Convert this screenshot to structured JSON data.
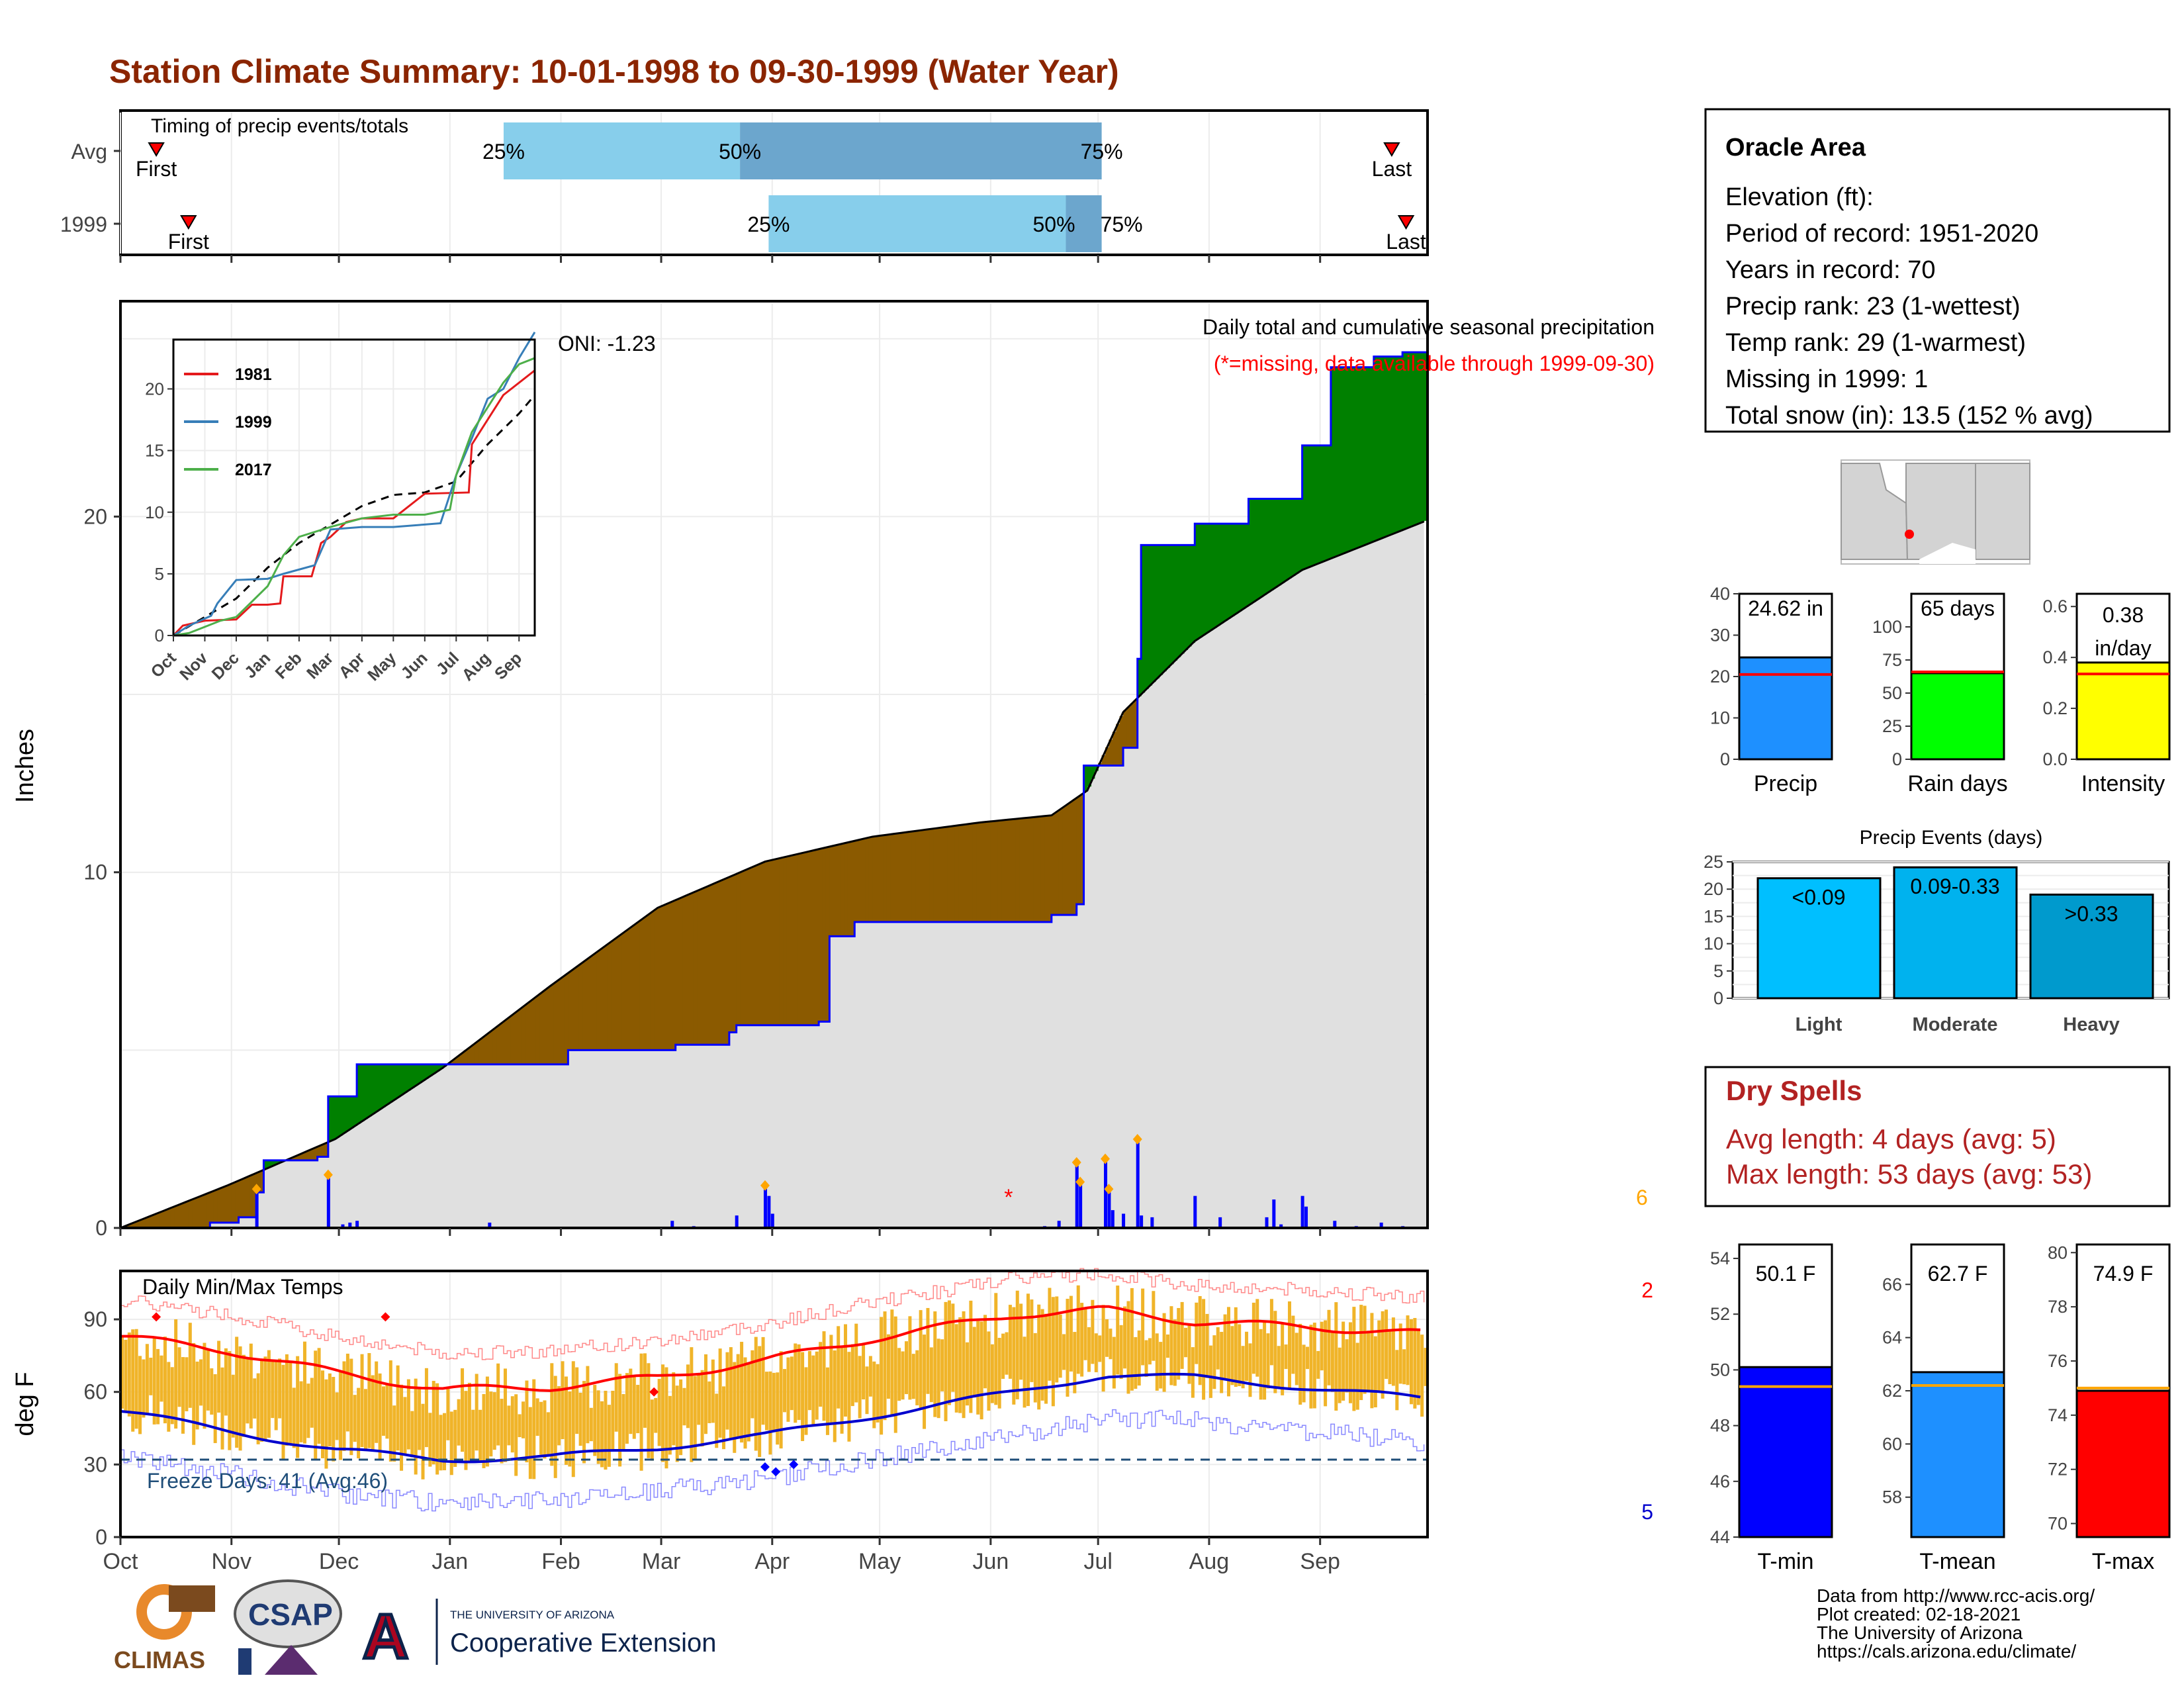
{
  "title": "Station Climate Summary: 10-01-1998 to 09-30-1999 (Water Year)",
  "colors": {
    "title": "#8B2500",
    "bar_light": "#87CEEB",
    "bar_mid": "#6CA6CD",
    "surplus": "#008000",
    "deficit": "#8B5A00",
    "avg_area": "#E0E0E0",
    "cum_line": "#0000FF",
    "daily_bar": "#0000FF",
    "marker": "#FFA500",
    "missing": "#FF0000",
    "temp_bar": "#F0B429",
    "tmax_line": "#FF0000",
    "tmin_line": "#0000CD",
    "freeze": "#1F4E79",
    "dry_text": "#B22222"
  },
  "timing": {
    "title": "Timing of precip events/totals",
    "rows": [
      {
        "label": "Avg",
        "q25": "25%",
        "q50": "50%",
        "q75": "75%",
        "first": "First",
        "last": "Last",
        "q25_day": 107,
        "q50_day": 173,
        "q75_day": 274,
        "first_day": 10,
        "last_day": 355
      },
      {
        "label": "1999",
        "q25": "25%",
        "q50": "50%",
        "q75": "75%",
        "first": "First",
        "last": "Last",
        "q25_day": 181,
        "q50_day": 264,
        "q75_day": 274,
        "first_day": 19,
        "last_day": 359
      }
    ]
  },
  "months": [
    "Oct",
    "Nov",
    "Dec",
    "Jan",
    "Feb",
    "Mar",
    "Apr",
    "May",
    "Jun",
    "Jul",
    "Aug",
    "Sep"
  ],
  "precip_panel": {
    "ylabel": "Inches",
    "oni": "ONI: -1.23",
    "heading": "Daily total and cumulative seasonal precipitation",
    "missing_note": "(*=missing, data available through 1999-09-30)",
    "count_label": "6",
    "yticks": [
      "0",
      "10",
      "20"
    ]
  },
  "inset": {
    "legend": [
      "1981",
      "1999",
      "2017"
    ],
    "legend_colors": [
      "#E41A1C",
      "#377EB8",
      "#4DAF4A"
    ],
    "yticks": [
      "0",
      "5",
      "10",
      "15",
      "20"
    ],
    "xticks": [
      "Oct",
      "Nov",
      "Dec",
      "Jan",
      "Feb",
      "Mar",
      "Apr",
      "May",
      "Jun",
      "Jul",
      "Aug",
      "Sep"
    ]
  },
  "temp_panel": {
    "ylabel": "deg F",
    "heading": "Daily Min/Max Temps",
    "freeze_label": "Freeze Days: 41 (Avg:46)",
    "max_count": "2",
    "min_count": "5",
    "yticks": [
      "0",
      "30",
      "60",
      "90"
    ]
  },
  "station": {
    "name": "Oracle Area",
    "lines": [
      "Elevation (ft):",
      "Period of record: 1951-2020",
      "Years in record: 70",
      "Precip rank: 23 (1-wettest)",
      "Temp rank: 29 (1-warmest)",
      "Missing in 1999: 1",
      "Total snow (in): 13.5 (152 % avg)"
    ]
  },
  "mini_bars": [
    {
      "id": "precip",
      "label": "Precip",
      "value_text": "24.62 in",
      "value": 24.62,
      "avg": 20.5,
      "ymax": 40,
      "yticks": [
        "0",
        "10",
        "20",
        "30",
        "40"
      ],
      "color": "#1E90FF"
    },
    {
      "id": "raindays",
      "label": "Rain days",
      "value_text": "65 days",
      "value": 65,
      "avg": 66,
      "ymax": 125,
      "yticks": [
        "0",
        "25",
        "50",
        "75",
        "100"
      ],
      "color": "#00FF00"
    },
    {
      "id": "intensity",
      "label": "Intensity",
      "value_text": "0.38",
      "value_text2": "in/day",
      "value": 0.38,
      "avg": 0.335,
      "ymax": 0.65,
      "yticks": [
        "0.0",
        "0.2",
        "0.4",
        "0.6"
      ],
      "color": "#FFFF00"
    }
  ],
  "events": {
    "title": "Precip Events (days)",
    "yticks": [
      "0",
      "5",
      "10",
      "15",
      "20",
      "25"
    ],
    "bars": [
      {
        "label": "Light",
        "bin": "<0.09",
        "value": 22,
        "color": "#00BFFF"
      },
      {
        "label": "Moderate",
        "bin": "0.09-0.33",
        "value": 24,
        "color": "#00B2EE"
      },
      {
        "label": "Heavy",
        "bin": ">0.33",
        "value": 19,
        "color": "#009ACD"
      }
    ]
  },
  "dry_spells": {
    "title": "Dry Spells",
    "avg": "Avg length: 4 days (avg: 5)",
    "max": "Max length: 53 days (avg: 53)"
  },
  "temp_bars": [
    {
      "id": "tmin",
      "label": "T-min",
      "value_text": "50.1 F",
      "value": 50.1,
      "avg": 49.4,
      "ymin": 44,
      "ymax": 54.5,
      "yticks": [
        "44",
        "46",
        "48",
        "50",
        "52",
        "54"
      ],
      "color": "#0000FF"
    },
    {
      "id": "tmean",
      "label": "T-mean",
      "value_text": "62.7 F",
      "value": 62.7,
      "avg": 62.2,
      "ymin": 56.5,
      "ymax": 67.5,
      "yticks": [
        "58",
        "60",
        "62",
        "64",
        "66"
      ],
      "color": "#1E90FF"
    },
    {
      "id": "tmax",
      "label": "T-max",
      "value_text": "74.9 F",
      "value": 74.9,
      "avg": 75.0,
      "ymin": 69.5,
      "ymax": 80.3,
      "yticks": [
        "70",
        "72",
        "74",
        "76",
        "78",
        "80"
      ],
      "color": "#FF0000"
    }
  ],
  "footer": {
    "lines": [
      "Data from http://www.rcc-acis.org/",
      "Plot created: 02-18-2021",
      "The University of Arizona",
      "https://cals.arizona.edu/climate/"
    ],
    "climas": "CLIMAS",
    "csap": "CSAP",
    "ua_small": "THE UNIVERSITY OF ARIZONA",
    "ua_big": "Cooperative Extension"
  },
  "chart_data": {
    "type": "area",
    "title": "Station Climate Summary: 10-01-1998 to 09-30-1999 (Water Year)",
    "ylabel": "Inches",
    "ylim": [
      0,
      26
    ],
    "x_unit": "day of water year",
    "cumulative_1999": [
      [
        0,
        0
      ],
      [
        20,
        0
      ],
      [
        25,
        0.15
      ],
      [
        33,
        0.3
      ],
      [
        38,
        1.0
      ],
      [
        40,
        1.9
      ],
      [
        55,
        2.0
      ],
      [
        58,
        3.7
      ],
      [
        66,
        4.6
      ],
      [
        95,
        4.6
      ],
      [
        125,
        5.0
      ],
      [
        155,
        5.15
      ],
      [
        170,
        5.5
      ],
      [
        172,
        5.7
      ],
      [
        195,
        5.8
      ],
      [
        198,
        8.2
      ],
      [
        205,
        8.6
      ],
      [
        260,
        8.8
      ],
      [
        267,
        9.1
      ],
      [
        269,
        13.0
      ],
      [
        280,
        13.5
      ],
      [
        284,
        16.0
      ],
      [
        285,
        19.2
      ],
      [
        300,
        19.8
      ],
      [
        315,
        20.5
      ],
      [
        330,
        22.0
      ],
      [
        338,
        24.2
      ],
      [
        350,
        24.5
      ],
      [
        358,
        24.62
      ],
      [
        365,
        24.62
      ]
    ],
    "cumulative_avg": [
      [
        0,
        0
      ],
      [
        30,
        1.2
      ],
      [
        60,
        2.5
      ],
      [
        90,
        4.5
      ],
      [
        120,
        6.8
      ],
      [
        150,
        9.0
      ],
      [
        180,
        10.3
      ],
      [
        210,
        11.0
      ],
      [
        240,
        11.4
      ],
      [
        260,
        11.6
      ],
      [
        270,
        12.3
      ],
      [
        280,
        14.5
      ],
      [
        300,
        16.5
      ],
      [
        330,
        18.5
      ],
      [
        365,
        19.9
      ]
    ],
    "daily_events": [
      [
        38,
        1.0
      ],
      [
        58,
        1.4
      ],
      [
        62,
        0.1
      ],
      [
        64,
        0.15
      ],
      [
        66,
        0.2
      ],
      [
        103,
        0.15
      ],
      [
        154,
        0.2
      ],
      [
        160,
        0.05
      ],
      [
        172,
        0.35
      ],
      [
        180,
        1.1
      ],
      [
        181,
        0.9
      ],
      [
        182,
        0.4
      ],
      [
        258,
        0.05
      ],
      [
        262,
        0.2
      ],
      [
        267,
        1.75
      ],
      [
        268,
        1.2
      ],
      [
        275,
        1.85
      ],
      [
        276,
        1.0
      ],
      [
        277,
        0.5
      ],
      [
        280,
        0.4
      ],
      [
        284,
        2.4
      ],
      [
        285,
        0.35
      ],
      [
        288,
        0.3
      ],
      [
        300,
        0.9
      ],
      [
        307,
        0.3
      ],
      [
        320,
        0.3
      ],
      [
        322,
        0.8
      ],
      [
        324,
        0.1
      ],
      [
        330,
        0.9
      ],
      [
        331,
        0.6
      ],
      [
        339,
        0.2
      ],
      [
        345,
        0.05
      ],
      [
        352,
        0.15
      ],
      [
        358,
        0.05
      ]
    ],
    "temps": {
      "tmax_avg": [
        [
          0,
          83
        ],
        [
          30,
          77
        ],
        [
          60,
          68
        ],
        [
          90,
          61
        ],
        [
          120,
          62
        ],
        [
          150,
          66
        ],
        [
          180,
          73
        ],
        [
          210,
          82
        ],
        [
          250,
          92
        ],
        [
          275,
          94
        ],
        [
          300,
          89
        ],
        [
          330,
          87
        ],
        [
          365,
          84
        ]
      ],
      "tmin_avg": [
        [
          0,
          52
        ],
        [
          30,
          44
        ],
        [
          60,
          36
        ],
        [
          90,
          32
        ],
        [
          120,
          33
        ],
        [
          150,
          37
        ],
        [
          180,
          42
        ],
        [
          210,
          50
        ],
        [
          250,
          60
        ],
        [
          275,
          67
        ],
        [
          300,
          66
        ],
        [
          330,
          62
        ],
        [
          365,
          57
        ]
      ],
      "freeze_line": 32,
      "ylim": [
        0,
        110
      ]
    }
  }
}
